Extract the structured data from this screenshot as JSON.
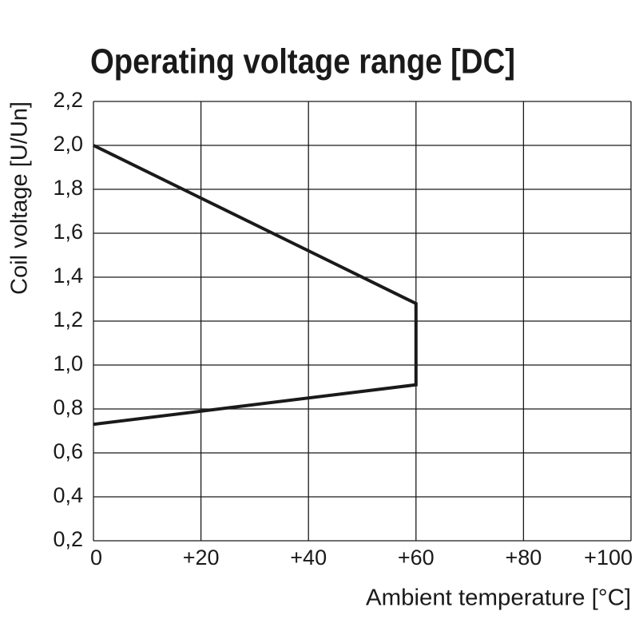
{
  "chart_data": {
    "type": "line",
    "title": "Operating voltage range [DC]",
    "x_label": "Ambient temperature [°C]",
    "y_label": "Coil voltage [U/Un]",
    "x": [
      0,
      60,
      60,
      0
    ],
    "series": [
      {
        "color": "#1a1a1a",
        "values": [
          2.0,
          1.28,
          0.91,
          0.73
        ]
      }
    ],
    "xlim": [
      0,
      100
    ],
    "xticks": [
      0,
      {
        "value": 20,
        "label": "+20"
      },
      {
        "value": 40,
        "label": "+40"
      },
      {
        "value": 60,
        "label": "+60"
      },
      {
        "value": 80,
        "label": "+80"
      },
      {
        "value": 100,
        "label": "+100"
      }
    ],
    "ylim": [
      0.2,
      2.2
    ],
    "yticks": [
      {
        "value": 0.2,
        "label": "0,2"
      },
      {
        "value": 0.4,
        "label": "0,4"
      },
      {
        "value": 0.6,
        "label": "0,6"
      },
      {
        "value": 0.8,
        "label": "0,8"
      },
      {
        "value": 1.0,
        "label": "1,0"
      },
      {
        "value": 1.2,
        "label": "1,2"
      },
      {
        "value": 1.4,
        "label": "1,4"
      },
      {
        "value": 1.6,
        "label": "1,6"
      },
      {
        "value": 1.8,
        "label": "1,8"
      },
      {
        "value": 2.0,
        "label": "2,0"
      },
      {
        "value": 2.2,
        "label": "2,2"
      }
    ],
    "grid": true
  }
}
